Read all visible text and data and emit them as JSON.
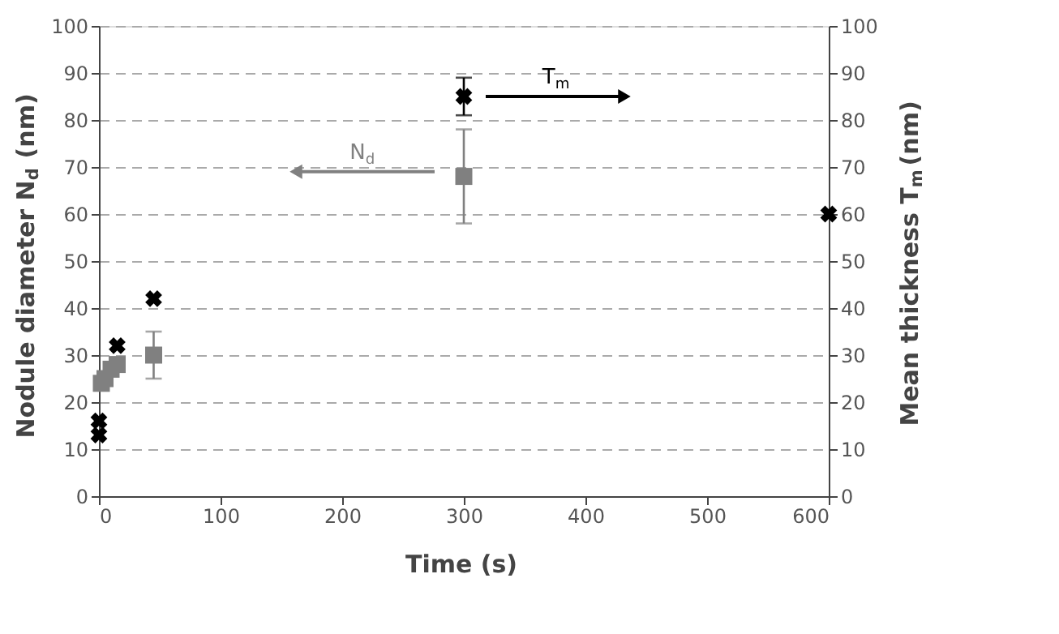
{
  "chart_data": {
    "type": "scatter",
    "xlabel": "Time (s)",
    "ylabel": "Nodule diameter N$_{d}$ (nm)",
    "y2label": "Mean thickness T$_{m}$ (nm)",
    "xlim": [
      0,
      600
    ],
    "xticks": [
      0,
      100,
      200,
      300,
      400,
      500,
      600
    ],
    "ylim": [
      0,
      100
    ],
    "yticks": [
      0,
      10,
      20,
      30,
      40,
      50,
      60,
      70,
      80,
      90,
      100
    ],
    "y2lim": [
      0,
      100
    ],
    "y2ticks": [
      0,
      10,
      20,
      30,
      40,
      50,
      60,
      70,
      80,
      90,
      100
    ],
    "grid": "y",
    "legend": false,
    "series": [
      {
        "name": "N$_{d}$",
        "color": "#808080",
        "marker": "square",
        "x": [
          2,
          5,
          10,
          15,
          45,
          300
        ],
        "values": [
          24,
          25,
          27,
          28,
          30,
          68
        ],
        "errors": [
          null,
          null,
          null,
          null,
          5,
          [
            58,
            78
          ]
        ]
      },
      {
        "name": "T$_{m}$",
        "color": "#000000",
        "marker": "cross",
        "axis": "y2",
        "x": [
          0,
          0,
          15,
          45,
          300,
          600
        ],
        "values": [
          13,
          16,
          32,
          42,
          85,
          60
        ],
        "errors": [
          null,
          null,
          null,
          null,
          [
            81,
            89
          ],
          null
        ]
      }
    ]
  }
}
